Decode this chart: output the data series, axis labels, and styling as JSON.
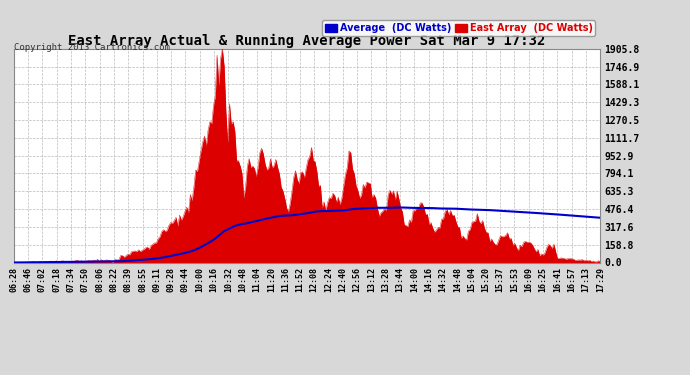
{
  "title": "East Array Actual & Running Average Power Sat Mar 9 17:32",
  "copyright": "Copyright 2013 Cartronics.com",
  "legend_avg": "Average  (DC Watts)",
  "legend_east": "East Array  (DC Watts)",
  "ylabel_values": [
    0.0,
    158.8,
    317.6,
    476.4,
    635.3,
    794.1,
    952.9,
    1111.7,
    1270.5,
    1429.3,
    1588.1,
    1746.9,
    1905.8
  ],
  "ymax": 1905.8,
  "background_color": "#d8d8d8",
  "plot_bg": "#ffffff",
  "bar_color": "#dd0000",
  "avg_color": "#0000cc",
  "title_color": "#000000",
  "grid_color": "#aaaaaa",
  "x_labels": [
    "06:28",
    "06:46",
    "07:02",
    "07:18",
    "07:34",
    "07:50",
    "08:06",
    "08:22",
    "08:39",
    "08:55",
    "09:11",
    "09:28",
    "09:44",
    "10:00",
    "10:16",
    "10:32",
    "10:48",
    "11:04",
    "11:20",
    "11:36",
    "11:52",
    "12:08",
    "12:24",
    "12:40",
    "12:56",
    "13:12",
    "13:28",
    "13:44",
    "14:00",
    "14:16",
    "14:32",
    "14:48",
    "15:04",
    "15:20",
    "15:37",
    "15:53",
    "16:09",
    "16:25",
    "16:41",
    "16:57",
    "17:13",
    "17:29"
  ]
}
